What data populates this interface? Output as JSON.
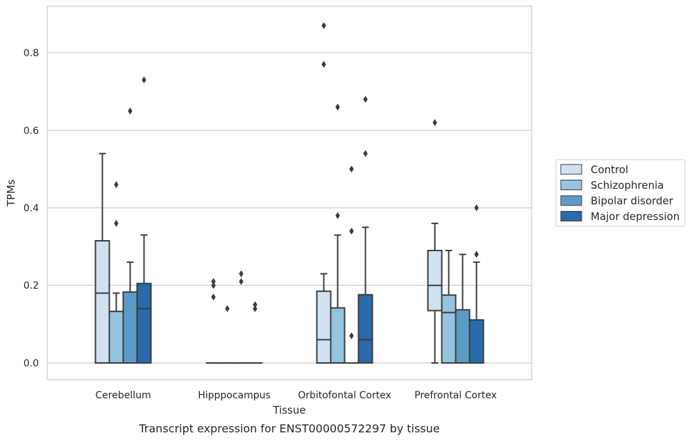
{
  "chart_data": {
    "type": "boxplot",
    "title": "",
    "caption": "Transcript expression for ENST00000572297 by tissue",
    "xlabel": "Tissue",
    "ylabel": "TPMs",
    "ylim": [
      -0.043,
      0.92
    ],
    "yticks": [
      0.0,
      0.2,
      0.4,
      0.6,
      0.8
    ],
    "ytick_labels": [
      "0.0",
      "0.2",
      "0.4",
      "0.6",
      "0.8"
    ],
    "grid": "horizontal",
    "legend_position": "right",
    "categories": [
      "Cerebellum",
      "Hipppocampus",
      "Orbitofontal Cortex",
      "Prefrontal Cortex"
    ],
    "series": [
      {
        "name": "Control",
        "color": "#d0e1f2",
        "boxes": [
          {
            "q1": 0.0,
            "median": 0.18,
            "q3": 0.315,
            "whisker_low": 0.0,
            "whisker_high": 0.54,
            "outliers": []
          },
          {
            "q1": 0.0,
            "median": 0.0,
            "q3": 0.0,
            "whisker_low": 0.0,
            "whisker_high": 0.0,
            "outliers": [
              0.21,
              0.2,
              0.17
            ]
          },
          {
            "q1": 0.0,
            "median": 0.06,
            "q3": 0.185,
            "whisker_low": 0.0,
            "whisker_high": 0.23,
            "outliers": [
              0.87,
              0.77
            ]
          },
          {
            "q1": 0.135,
            "median": 0.2,
            "q3": 0.29,
            "whisker_low": 0.0,
            "whisker_high": 0.36,
            "outliers": [
              0.62
            ]
          }
        ]
      },
      {
        "name": "Schizophrenia",
        "color": "#94c4df",
        "boxes": [
          {
            "q1": 0.0,
            "median": 0.0,
            "q3": 0.133,
            "whisker_low": 0.0,
            "whisker_high": 0.18,
            "outliers": [
              0.46,
              0.36
            ]
          },
          {
            "q1": 0.0,
            "median": 0.0,
            "q3": 0.0,
            "whisker_low": 0.0,
            "whisker_high": 0.0,
            "outliers": [
              0.14
            ]
          },
          {
            "q1": 0.0,
            "median": 0.0,
            "q3": 0.142,
            "whisker_low": 0.0,
            "whisker_high": 0.33,
            "outliers": [
              0.66,
              0.38
            ]
          },
          {
            "q1": 0.0,
            "median": 0.13,
            "q3": 0.175,
            "whisker_low": 0.0,
            "whisker_high": 0.29,
            "outliers": []
          }
        ]
      },
      {
        "name": "Bipolar disorder",
        "color": "#5b9bc8",
        "boxes": [
          {
            "q1": 0.0,
            "median": 0.0,
            "q3": 0.183,
            "whisker_low": 0.0,
            "whisker_high": 0.26,
            "outliers": [
              0.65
            ]
          },
          {
            "q1": 0.0,
            "median": 0.0,
            "q3": 0.0,
            "whisker_low": 0.0,
            "whisker_high": 0.0,
            "outliers": [
              0.23,
              0.21
            ]
          },
          {
            "q1": 0.0,
            "median": 0.0,
            "q3": 0.0,
            "whisker_low": 0.0,
            "whisker_high": 0.0,
            "outliers": [
              0.5,
              0.34,
              0.07
            ]
          },
          {
            "q1": 0.0,
            "median": 0.0,
            "q3": 0.137,
            "whisker_low": 0.0,
            "whisker_high": 0.28,
            "outliers": []
          }
        ]
      },
      {
        "name": "Major depression",
        "color": "#2a6aaa",
        "boxes": [
          {
            "q1": 0.0,
            "median": 0.14,
            "q3": 0.205,
            "whisker_low": 0.0,
            "whisker_high": 0.33,
            "outliers": [
              0.73
            ]
          },
          {
            "q1": 0.0,
            "median": 0.0,
            "q3": 0.0,
            "whisker_low": 0.0,
            "whisker_high": 0.0,
            "outliers": [
              0.15,
              0.14
            ]
          },
          {
            "q1": 0.0,
            "median": 0.06,
            "q3": 0.176,
            "whisker_low": 0.0,
            "whisker_high": 0.35,
            "outliers": [
              0.68,
              0.54
            ]
          },
          {
            "q1": 0.0,
            "median": 0.0,
            "q3": 0.111,
            "whisker_low": 0.0,
            "whisker_high": 0.26,
            "outliers": [
              0.4,
              0.28
            ]
          }
        ]
      }
    ]
  }
}
